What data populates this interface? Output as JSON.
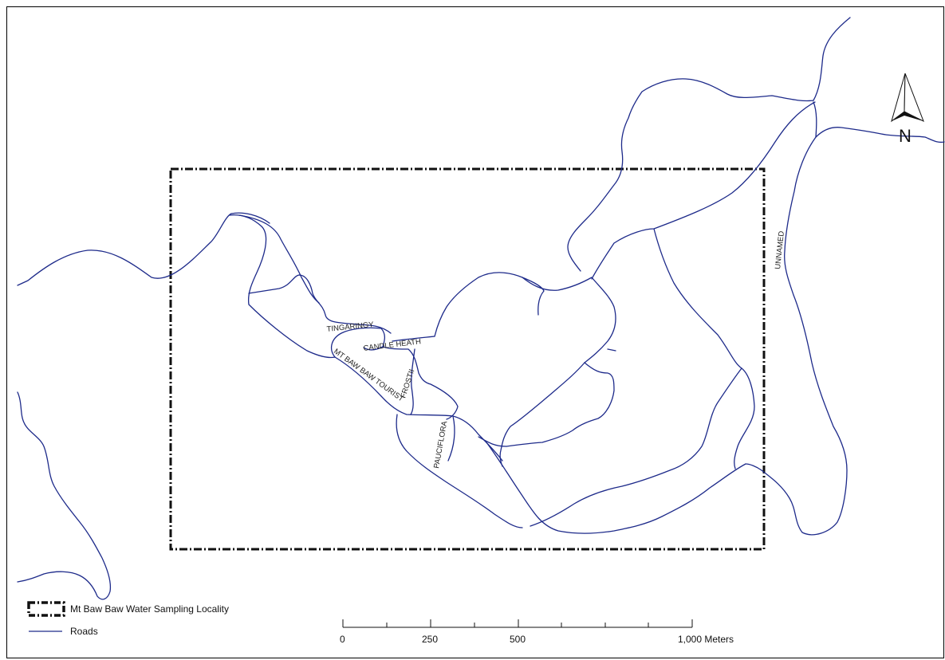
{
  "map": {
    "road_labels": {
      "tingaringy": "TINGARINGY",
      "candle_heath": "CANDLE HEATH",
      "mt_baw_baw_tourist": "MT BAW BAW TOURIST",
      "frostii": "FROSTII",
      "pauciflora": "PAUCIFLORA",
      "unnamed": "UNNAMED"
    },
    "north_arrow": {
      "label": "N",
      "icon": "north-arrow-icon"
    }
  },
  "legend": {
    "items": [
      {
        "label": "Mt Baw Baw Water Sampling Locality",
        "symbol": "dash-dot-rectangle"
      },
      {
        "label": "Roads",
        "symbol": "blue-line"
      }
    ]
  },
  "scale_bar": {
    "labels": [
      "0",
      "250",
      "500",
      "1,000 Meters"
    ],
    "unit": "Meters"
  },
  "colors": {
    "road": "#1d2a8a",
    "locality_border": "#111111",
    "background": "#ffffff"
  }
}
